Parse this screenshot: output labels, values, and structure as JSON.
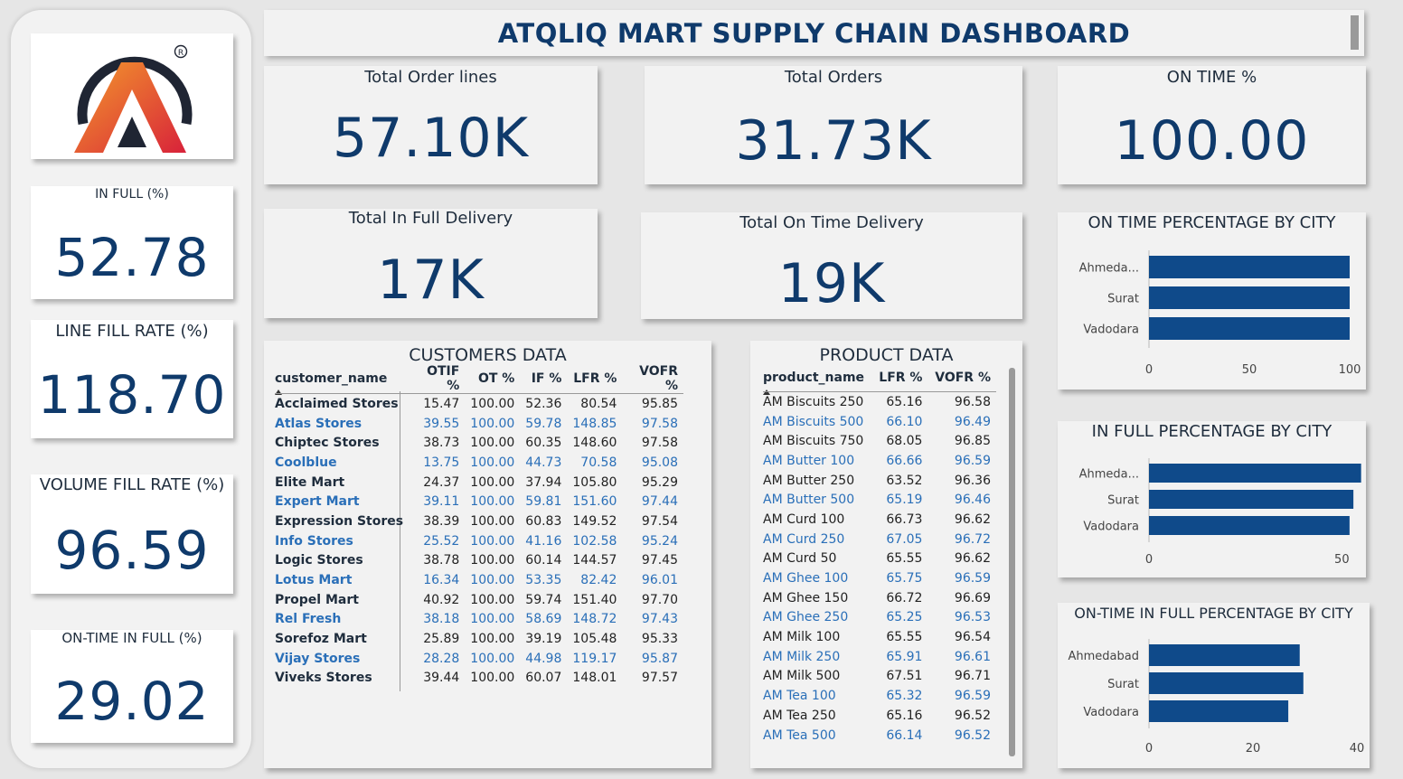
{
  "header": {
    "title": "ATQLIQ MART SUPPLY CHAIN DASHBOARD"
  },
  "logo": {
    "icon": "atliq-logo-icon",
    "registered": "®"
  },
  "sidebar_kpis": [
    {
      "label": "IN FULL (%)",
      "value": "52.78"
    },
    {
      "label": "LINE FILL RATE (%)",
      "value": "118.70"
    },
    {
      "label": "VOLUME FILL RATE (%)",
      "value": "96.59"
    },
    {
      "label": "ON-TIME IN FULL (%)",
      "value": "29.02"
    }
  ],
  "kpis": {
    "total_order_lines": {
      "label": "Total Order lines",
      "value": "57.10K"
    },
    "total_orders": {
      "label": "Total Orders",
      "value": "31.73K"
    },
    "on_time_pct": {
      "label": "ON TIME %",
      "value": "100.00"
    },
    "total_in_full": {
      "label": "Total In Full Delivery",
      "value": "17K"
    },
    "total_on_time": {
      "label": "Total On Time Delivery",
      "value": "19K"
    }
  },
  "customers": {
    "title": "CUSTOMERS DATA",
    "columns": [
      "customer_name",
      "OTIF %",
      "OT %",
      "IF %",
      "LFR %",
      "VOFR %"
    ],
    "rows": [
      [
        "Acclaimed Stores",
        "15.47",
        "100.00",
        "52.36",
        "80.54",
        "95.85"
      ],
      [
        "Atlas Stores",
        "39.55",
        "100.00",
        "59.78",
        "148.85",
        "97.58"
      ],
      [
        "Chiptec Stores",
        "38.73",
        "100.00",
        "60.35",
        "148.60",
        "97.58"
      ],
      [
        "Coolblue",
        "13.75",
        "100.00",
        "44.73",
        "70.58",
        "95.08"
      ],
      [
        "Elite Mart",
        "24.37",
        "100.00",
        "37.94",
        "105.80",
        "95.29"
      ],
      [
        "Expert Mart",
        "39.11",
        "100.00",
        "59.81",
        "151.60",
        "97.44"
      ],
      [
        "Expression Stores",
        "38.39",
        "100.00",
        "60.83",
        "149.52",
        "97.54"
      ],
      [
        "Info Stores",
        "25.52",
        "100.00",
        "41.16",
        "102.58",
        "95.24"
      ],
      [
        "Logic Stores",
        "38.78",
        "100.00",
        "60.14",
        "144.57",
        "97.45"
      ],
      [
        "Lotus Mart",
        "16.34",
        "100.00",
        "53.35",
        "82.42",
        "96.01"
      ],
      [
        "Propel Mart",
        "40.92",
        "100.00",
        "59.74",
        "151.40",
        "97.70"
      ],
      [
        "Rel Fresh",
        "38.18",
        "100.00",
        "58.69",
        "148.72",
        "97.43"
      ],
      [
        "Sorefoz Mart",
        "25.89",
        "100.00",
        "39.19",
        "105.48",
        "95.33"
      ],
      [
        "Vijay Stores",
        "28.28",
        "100.00",
        "44.98",
        "119.17",
        "95.87"
      ],
      [
        "Viveks Stores",
        "39.44",
        "100.00",
        "60.07",
        "148.01",
        "97.57"
      ]
    ]
  },
  "products": {
    "title": "PRODUCT DATA",
    "columns": [
      "product_name",
      "LFR %",
      "VOFR %"
    ],
    "rows": [
      [
        "AM Biscuits 250",
        "65.16",
        "96.58"
      ],
      [
        "AM Biscuits 500",
        "66.10",
        "96.49"
      ],
      [
        "AM Biscuits 750",
        "68.05",
        "96.85"
      ],
      [
        "AM Butter 100",
        "66.66",
        "96.59"
      ],
      [
        "AM Butter 250",
        "63.52",
        "96.36"
      ],
      [
        "AM Butter 500",
        "65.19",
        "96.46"
      ],
      [
        "AM Curd 100",
        "66.73",
        "96.62"
      ],
      [
        "AM Curd 250",
        "67.05",
        "96.72"
      ],
      [
        "AM Curd 50",
        "65.55",
        "96.62"
      ],
      [
        "AM Ghee 100",
        "65.75",
        "96.59"
      ],
      [
        "AM Ghee 150",
        "66.72",
        "96.69"
      ],
      [
        "AM Ghee 250",
        "65.25",
        "96.53"
      ],
      [
        "AM Milk 100",
        "65.55",
        "96.54"
      ],
      [
        "AM Milk 250",
        "65.91",
        "96.61"
      ],
      [
        "AM Milk 500",
        "67.51",
        "96.71"
      ],
      [
        "AM Tea 100",
        "65.32",
        "96.59"
      ],
      [
        "AM Tea 250",
        "65.16",
        "96.52"
      ],
      [
        "AM Tea 500",
        "66.14",
        "96.52"
      ]
    ]
  },
  "chart_data": [
    {
      "type": "bar",
      "orientation": "horizontal",
      "title": "ON TIME PERCENTAGE BY CITY",
      "categories": [
        "Ahmeda...",
        "Surat",
        "Vadodara"
      ],
      "values": [
        100,
        100,
        100
      ],
      "ticks": [
        "0",
        "50",
        "100"
      ],
      "xlim": [
        0,
        100
      ],
      "grid": false,
      "color": "#0f4a8a"
    },
    {
      "type": "bar",
      "orientation": "horizontal",
      "title": "IN FULL PERCENTAGE BY CITY",
      "categories": [
        "Ahmeda...",
        "Surat",
        "Vadodara"
      ],
      "values": [
        55,
        53,
        52
      ],
      "ticks": [
        "0",
        "50"
      ],
      "xlim": [
        0,
        60
      ],
      "grid": false,
      "color": "#0f4a8a"
    },
    {
      "type": "bar",
      "orientation": "horizontal",
      "title": "ON-TIME IN FULL PERCENTAGE BY CITY",
      "categories": [
        "Ahmedabad",
        "Surat",
        "Vadodara"
      ],
      "values": [
        29,
        29.7,
        26.8
      ],
      "ticks": [
        "0",
        "20",
        "40"
      ],
      "xlim": [
        0,
        40
      ],
      "grid": false,
      "color": "#0f4a8a"
    }
  ]
}
